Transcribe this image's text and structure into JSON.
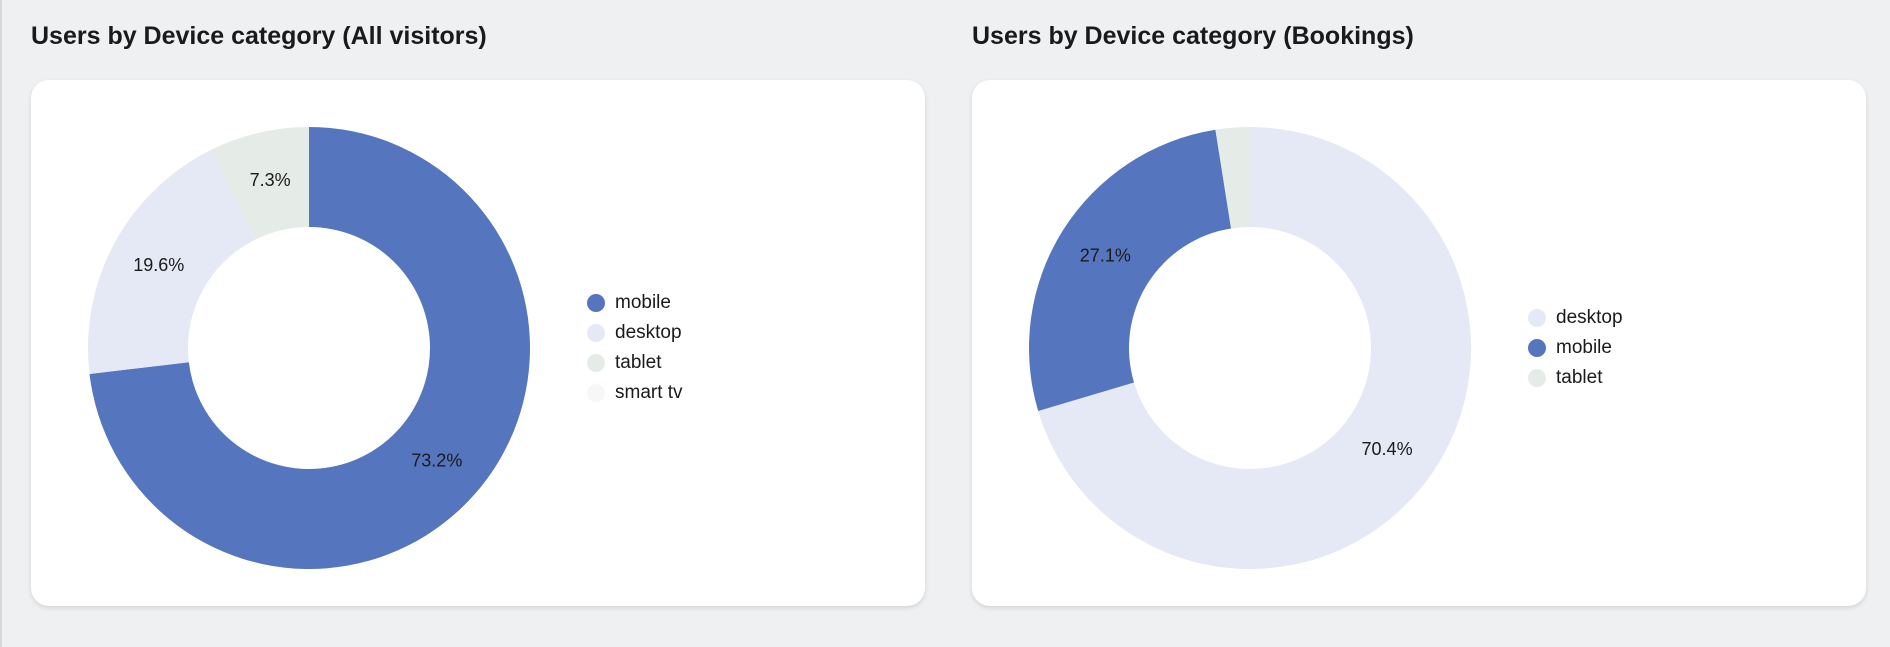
{
  "panels": [
    {
      "title": "Users by Device category (All visitors)",
      "legend": [
        "mobile",
        "desktop",
        "tablet",
        "smart tv"
      ]
    },
    {
      "title": "Users by Device category (Bookings)",
      "legend": [
        "desktop",
        "mobile",
        "tablet"
      ]
    }
  ],
  "chart_data": [
    {
      "type": "pie",
      "variant": "donut",
      "title": "Users by Device category (All visitors)",
      "categories": [
        "mobile",
        "desktop",
        "tablet",
        "smart tv"
      ],
      "values": [
        73.2,
        19.6,
        7.3,
        0.0
      ],
      "labels": [
        "73.2%",
        "19.6%",
        "7.3%",
        ""
      ],
      "colors": [
        "#5575be",
        "#e5e9f5",
        "#e5ebe7",
        "#f6f7f6"
      ],
      "legend_position": "right"
    },
    {
      "type": "pie",
      "variant": "donut",
      "title": "Users by Device category (Bookings)",
      "categories": [
        "desktop",
        "mobile",
        "tablet"
      ],
      "values": [
        70.4,
        27.1,
        2.5
      ],
      "labels": [
        "70.4%",
        "27.1%",
        ""
      ],
      "colors": [
        "#e5e9f5",
        "#5575be",
        "#e5ebe7"
      ],
      "legend_position": "right"
    }
  ]
}
